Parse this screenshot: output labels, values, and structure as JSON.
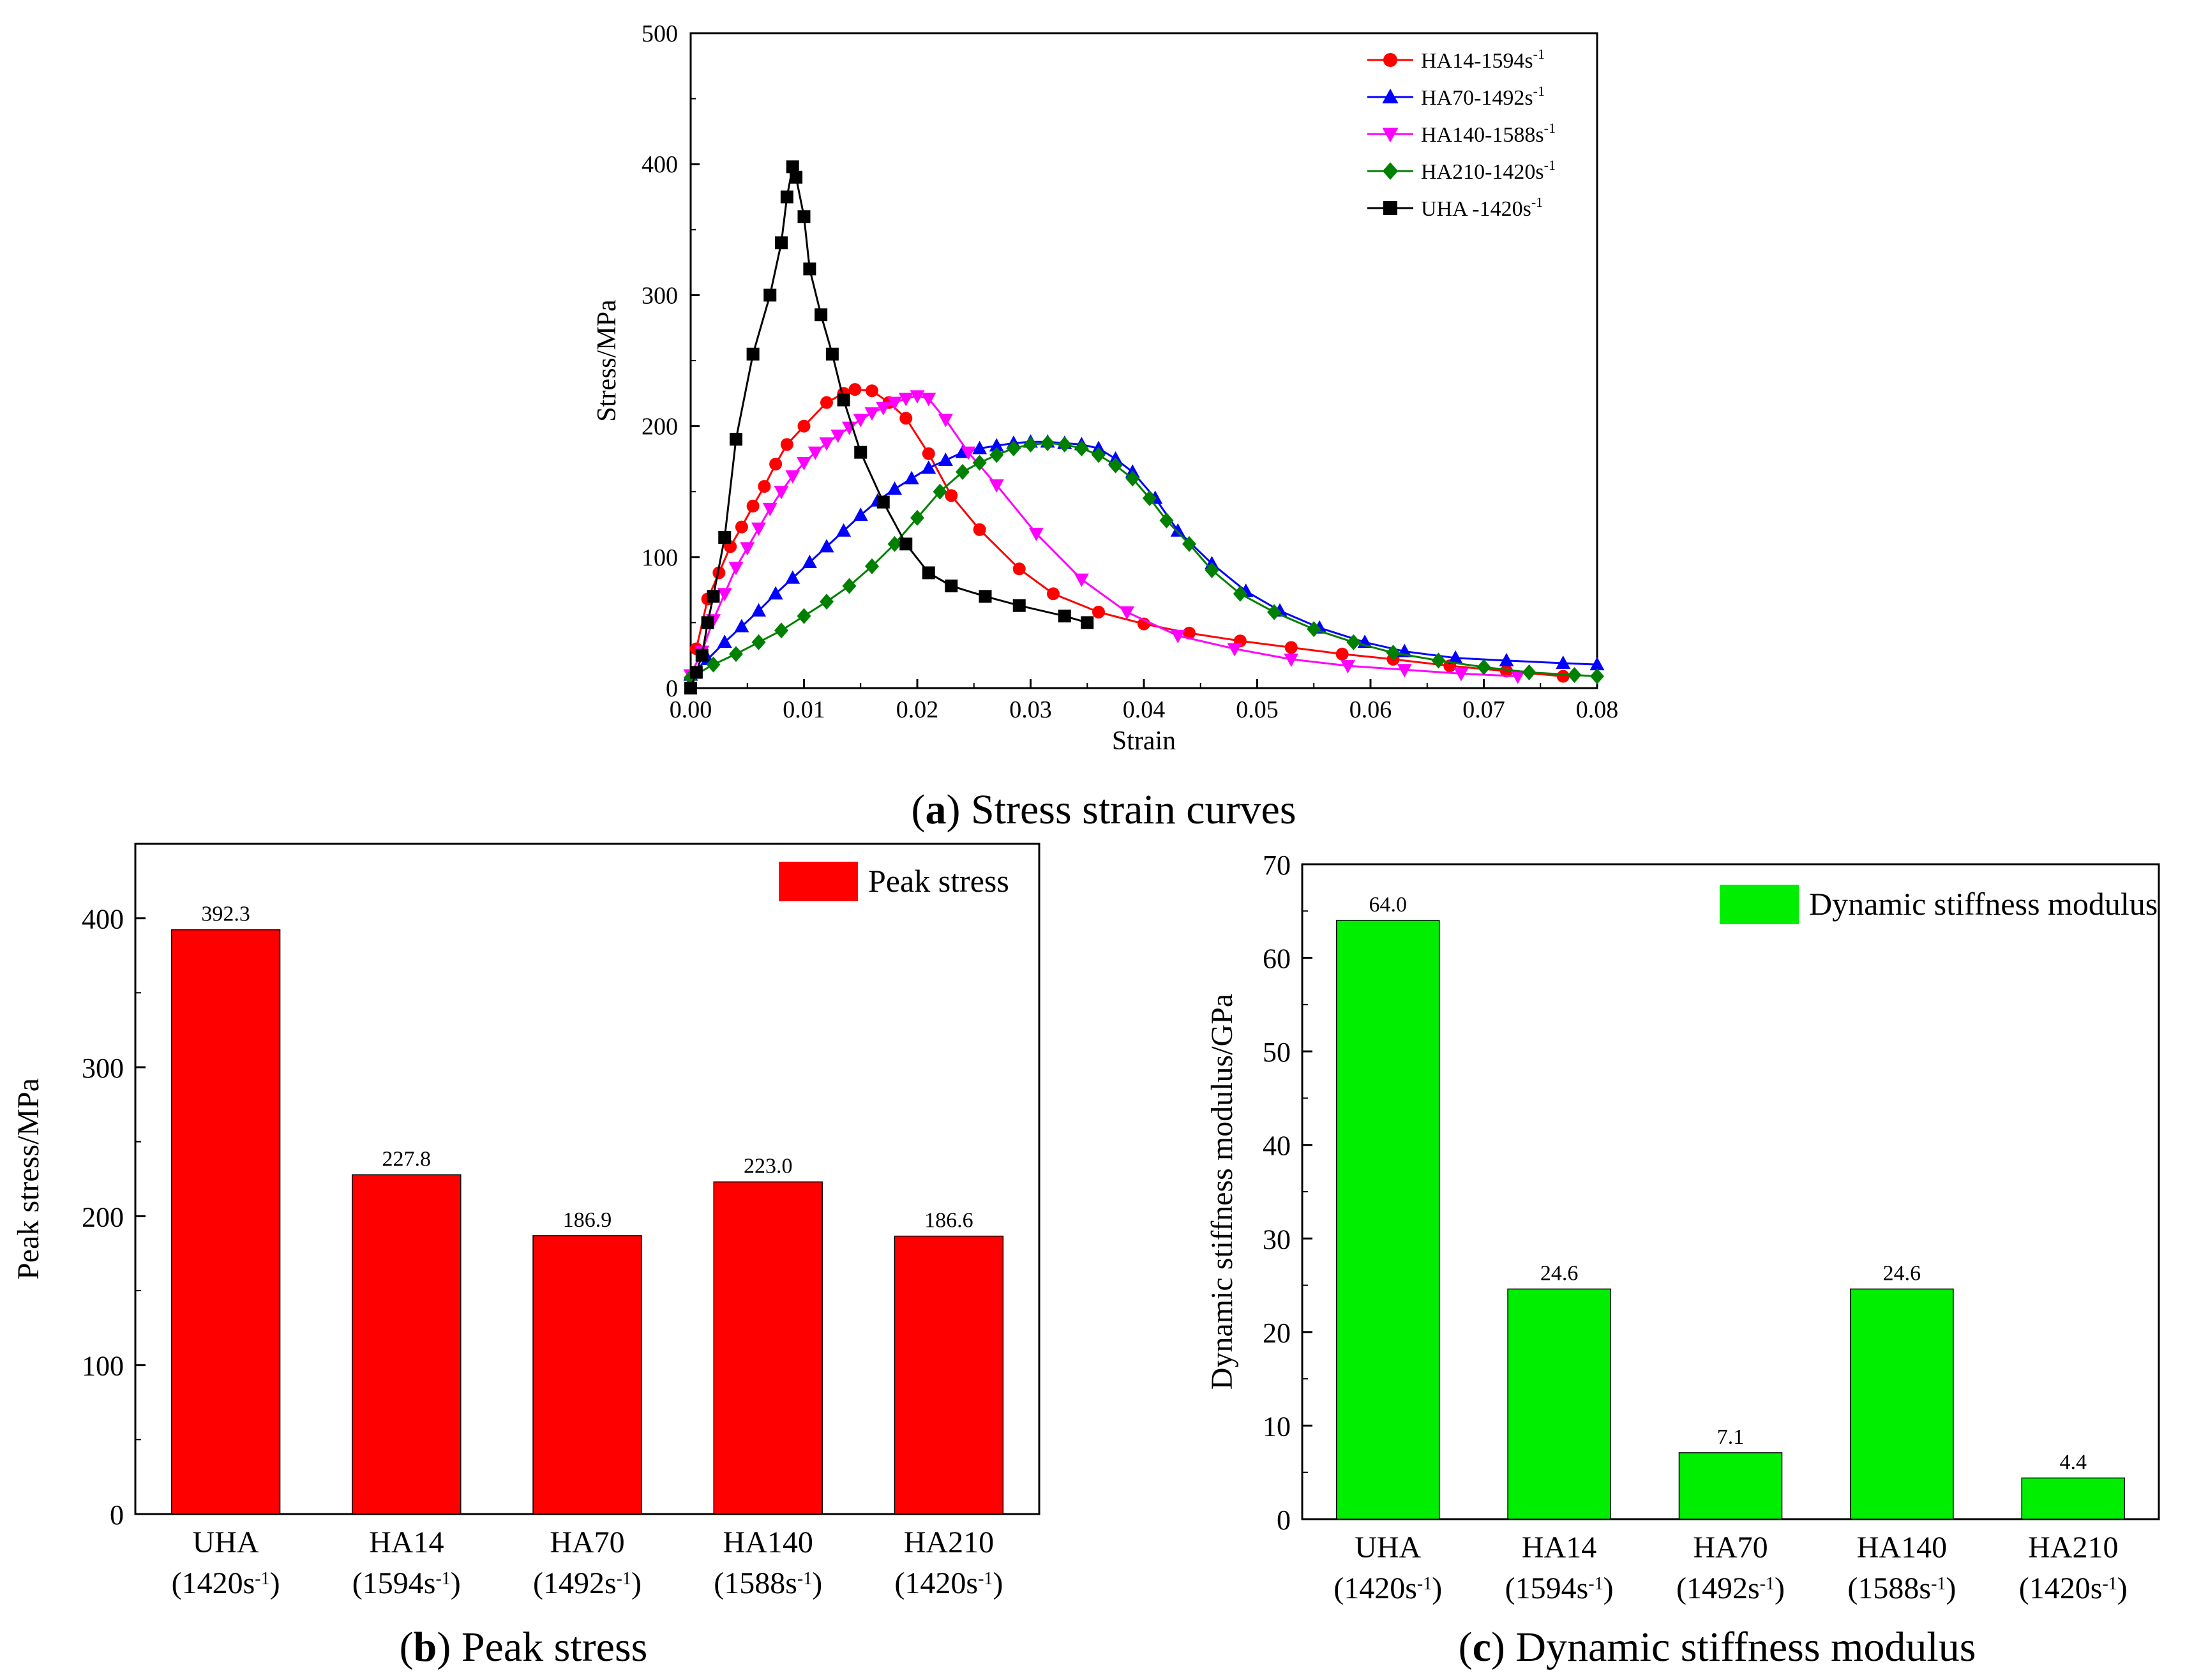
{
  "chart_data": [
    {
      "id": "a",
      "type": "line",
      "caption": {
        "letter": "a",
        "text": "Stress strain curves"
      },
      "xlabel": "Strain",
      "ylabel": "Stress/MPa",
      "xlim": [
        0.0,
        0.08
      ],
      "ylim": [
        0,
        500
      ],
      "xticks": [
        "0.00",
        "0.01",
        "0.02",
        "0.03",
        "0.04",
        "0.05",
        "0.06",
        "0.07",
        "0.08"
      ],
      "yticks": [
        "0",
        "100",
        "200",
        "300",
        "400",
        "500"
      ],
      "legend_position": "top-right",
      "series": [
        {
          "name": "HA14-1594s",
          "sup": "-1",
          "color": "#ff0000",
          "marker": "circle",
          "x": [
            0.0005,
            0.0015,
            0.0025,
            0.0035,
            0.0045,
            0.0055,
            0.0065,
            0.0075,
            0.0085,
            0.01,
            0.012,
            0.0135,
            0.0145,
            0.016,
            0.0175,
            0.019,
            0.021,
            0.023,
            0.0255,
            0.029,
            0.032,
            0.036,
            0.04,
            0.044,
            0.0485,
            0.053,
            0.0575,
            0.062,
            0.067,
            0.072,
            0.077
          ],
          "y": [
            30,
            68,
            88,
            108,
            123,
            139,
            154,
            171,
            186,
            200,
            218,
            225,
            228,
            227,
            218,
            206,
            179,
            147,
            121,
            91,
            72,
            58,
            49,
            42,
            36,
            31,
            26,
            22,
            17,
            13,
            9
          ]
        },
        {
          "name": "HA70-1492s",
          "sup": "-1",
          "color": "#0000ff",
          "marker": "triangle-up",
          "x": [
            0.0,
            0.0015,
            0.003,
            0.0045,
            0.006,
            0.0075,
            0.009,
            0.0105,
            0.012,
            0.0135,
            0.015,
            0.0165,
            0.018,
            0.0195,
            0.021,
            0.0225,
            0.024,
            0.0255,
            0.027,
            0.0285,
            0.03,
            0.0315,
            0.033,
            0.0345,
            0.036,
            0.0375,
            0.039,
            0.041,
            0.043,
            0.046,
            0.049,
            0.052,
            0.0555,
            0.0595,
            0.063,
            0.0675,
            0.072,
            0.077,
            0.08
          ],
          "y": [
            10,
            22,
            35,
            47,
            59,
            72,
            84,
            96,
            108,
            120,
            132,
            143,
            152,
            160,
            168,
            174,
            180,
            183,
            185,
            187,
            188,
            188,
            187,
            186,
            183,
            175,
            165,
            145,
            120,
            95,
            74,
            59,
            46,
            35,
            28,
            23,
            21,
            19,
            18
          ]
        },
        {
          "name": "HA140-1588s",
          "sup": "-1",
          "color": "#ff00ff",
          "marker": "triangle-down",
          "x": [
            0.0,
            0.001,
            0.002,
            0.003,
            0.004,
            0.005,
            0.006,
            0.007,
            0.008,
            0.009,
            0.01,
            0.011,
            0.012,
            0.013,
            0.014,
            0.015,
            0.016,
            0.017,
            0.018,
            0.019,
            0.02,
            0.021,
            0.0225,
            0.0245,
            0.027,
            0.0305,
            0.0345,
            0.0385,
            0.043,
            0.048,
            0.053,
            0.058,
            0.063,
            0.068,
            0.073
          ],
          "y": [
            10,
            28,
            52,
            72,
            92,
            107,
            122,
            137,
            150,
            162,
            172,
            180,
            187,
            193,
            199,
            205,
            210,
            214,
            218,
            221,
            223,
            221,
            205,
            180,
            155,
            118,
            83,
            58,
            40,
            30,
            22,
            17,
            14,
            11,
            9
          ]
        },
        {
          "name": "HA210-1420s",
          "sup": "-1",
          "color": "#008000",
          "marker": "diamond",
          "x": [
            0.0,
            0.002,
            0.004,
            0.006,
            0.008,
            0.01,
            0.012,
            0.014,
            0.016,
            0.018,
            0.02,
            0.022,
            0.024,
            0.0255,
            0.027,
            0.0285,
            0.03,
            0.0315,
            0.033,
            0.0345,
            0.036,
            0.0375,
            0.039,
            0.0405,
            0.042,
            0.044,
            0.046,
            0.0485,
            0.0515,
            0.055,
            0.0585,
            0.062,
            0.066,
            0.07,
            0.074,
            0.078,
            0.08
          ],
          "y": [
            8,
            18,
            26,
            35,
            44,
            55,
            66,
            78,
            93,
            110,
            130,
            150,
            165,
            172,
            178,
            183,
            186,
            187,
            186,
            183,
            178,
            170,
            160,
            145,
            128,
            110,
            90,
            72,
            58,
            45,
            35,
            27,
            21,
            16,
            12,
            10,
            9
          ]
        },
        {
          "name": "UHA -1420s",
          "sup": "-1",
          "color": "#000000",
          "marker": "square",
          "x": [
            0.0,
            0.0005,
            0.001,
            0.0015,
            0.002,
            0.003,
            0.004,
            0.0055,
            0.007,
            0.008,
            0.0085,
            0.009,
            0.0093,
            0.01,
            0.0105,
            0.0115,
            0.0125,
            0.0135,
            0.015,
            0.017,
            0.019,
            0.021,
            0.023,
            0.026,
            0.029,
            0.033,
            0.035
          ],
          "y": [
            0,
            12,
            25,
            50,
            70,
            115,
            190,
            255,
            300,
            340,
            375,
            398,
            390,
            360,
            320,
            285,
            255,
            220,
            180,
            142,
            110,
            88,
            78,
            70,
            63,
            55,
            50
          ]
        }
      ]
    },
    {
      "id": "b",
      "type": "bar",
      "caption": {
        "letter": "b",
        "text": "Peak stress"
      },
      "ylabel": "Peak stress/MPa",
      "ylim": [
        0,
        450
      ],
      "yticks": [
        "0",
        "100",
        "200",
        "300",
        "400"
      ],
      "legend": "Peak stress",
      "legend_position": "top-right",
      "color": "#ff0000",
      "categories": [
        "UHA",
        "HA14",
        "HA70",
        "HA140",
        "HA210"
      ],
      "rates": [
        "(1420s",
        "(1594s",
        "(1492s",
        "(1588s",
        "(1420s"
      ],
      "rate_sup": "-1",
      "values": [
        392.3,
        227.8,
        186.9,
        223.0,
        186.6
      ],
      "labels": [
        "392.3",
        "227.8",
        "186.9",
        "223.0",
        "186.6"
      ]
    },
    {
      "id": "c",
      "type": "bar",
      "caption": {
        "letter": "c",
        "text": "Dynamic stiffness modulus"
      },
      "ylabel": "Dynamic stiffness modulus/GPa",
      "ylim": [
        0,
        70
      ],
      "yticks": [
        "0",
        "10",
        "20",
        "30",
        "40",
        "50",
        "60",
        "70"
      ],
      "legend": "Dynamic stiffness modulus",
      "legend_position": "top-right",
      "color": "#00ee00",
      "categories": [
        "UHA",
        "HA14",
        "HA70",
        "HA140",
        "HA210"
      ],
      "rates": [
        "(1420s",
        "(1594s",
        "(1492s",
        "(1588s",
        "(1420s"
      ],
      "rate_sup": "-1",
      "values": [
        64.0,
        24.6,
        7.1,
        24.6,
        4.4
      ],
      "labels": [
        "64.0",
        "24.6",
        "7.1",
        "24.6",
        "4.4"
      ]
    }
  ]
}
